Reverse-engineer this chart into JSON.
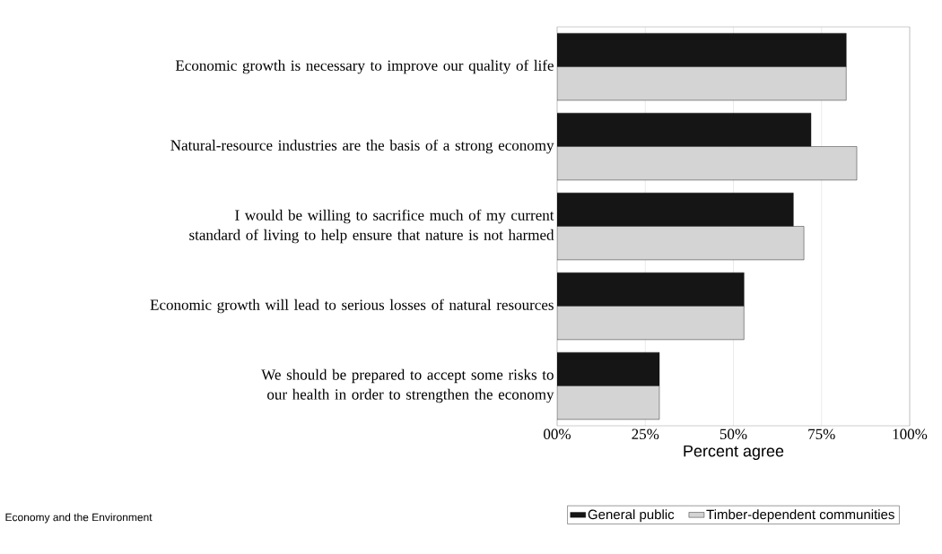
{
  "chart_data": {
    "type": "bar",
    "orientation": "horizontal",
    "categories": [
      "Economic growth is necessary to improve our quality of life",
      "Natural-resource industries are the basis of a strong economy",
      "I would be willing to sacrifice much of my current standard of living to help ensure that nature is not harmed",
      "Economic growth will lead to serious losses of natural resources",
      "We should be prepared to accept some risks to our health in order to strengthen the economy"
    ],
    "series": [
      {
        "name": "General public",
        "color": "#151515",
        "values": [
          82,
          72,
          67,
          53,
          29
        ]
      },
      {
        "name": "Timber-dependent communities",
        "color": "#d4d4d4",
        "values": [
          82,
          85,
          70,
          53,
          29
        ]
      }
    ],
    "xlabel": "Percent agree",
    "xlim": [
      0,
      100
    ],
    "xticks": [
      {
        "value": 0,
        "label": "00%"
      },
      {
        "value": 25,
        "label": "25%"
      },
      {
        "value": 50,
        "label": "50%"
      },
      {
        "value": 75,
        "label": "75%"
      },
      {
        "value": 100,
        "label": "100%"
      }
    ],
    "grid": "x",
    "legend": "bottom",
    "annotations": [
      "Economy and the Environment"
    ]
  }
}
